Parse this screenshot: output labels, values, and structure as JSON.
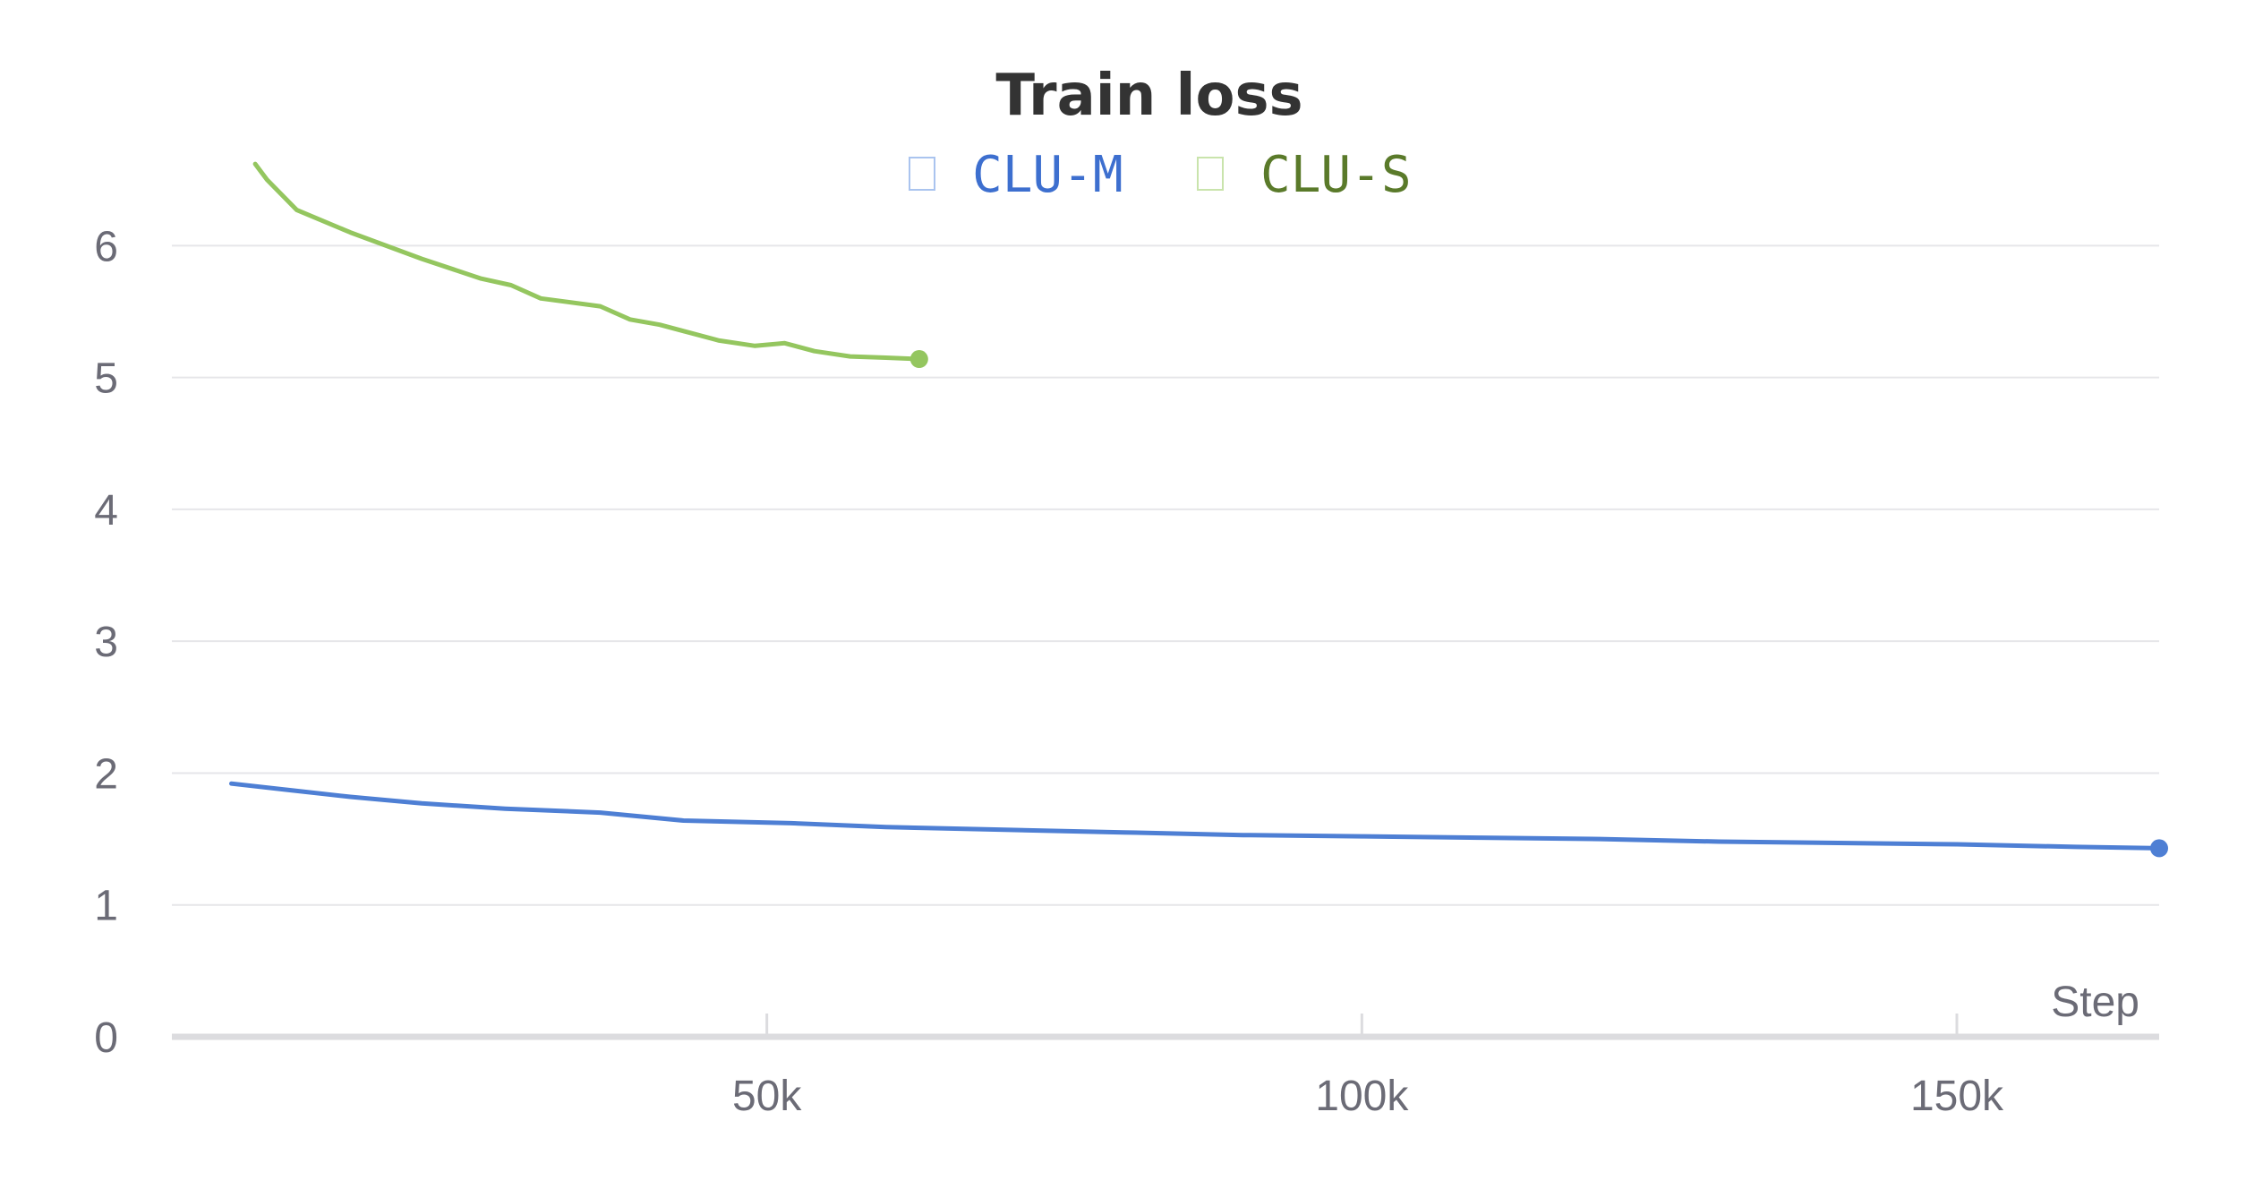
{
  "chart_data": {
    "type": "line",
    "title": "Train loss",
    "xlabel": "Step",
    "ylabel": "",
    "xlim": [
      0,
      167000
    ],
    "ylim": [
      0,
      6.6
    ],
    "x_ticks": [
      {
        "value": 50000,
        "label": "50k"
      },
      {
        "value": 100000,
        "label": "100k"
      },
      {
        "value": 150000,
        "label": "150k"
      }
    ],
    "y_ticks": [
      {
        "value": 0,
        "label": "0"
      },
      {
        "value": 1,
        "label": "1"
      },
      {
        "value": 2,
        "label": "2"
      },
      {
        "value": 3,
        "label": "3"
      },
      {
        "value": 4,
        "label": "4"
      },
      {
        "value": 5,
        "label": "5"
      },
      {
        "value": 6,
        "label": "6"
      }
    ],
    "grid": true,
    "legend_position": "top-center",
    "series": [
      {
        "name": "CLU-M",
        "color": "#4e7fd4",
        "legend_text_color": "#3d6fcf",
        "end_marker": true,
        "x": [
          5000,
          10000,
          15000,
          21000,
          28000,
          36000,
          43000,
          52000,
          60000,
          70000,
          80000,
          90000,
          100000,
          110000,
          120000,
          130000,
          140000,
          150000,
          160000,
          167000
        ],
        "y": [
          1.92,
          1.87,
          1.82,
          1.77,
          1.73,
          1.7,
          1.64,
          1.62,
          1.59,
          1.57,
          1.55,
          1.53,
          1.52,
          1.51,
          1.5,
          1.48,
          1.47,
          1.46,
          1.44,
          1.43
        ]
      },
      {
        "name": "CLU-S",
        "color": "#94c65f",
        "legend_text_color": "#5a7a2a",
        "end_marker": true,
        "x": [
          7000,
          8000,
          10500,
          15000,
          21000,
          26000,
          28500,
          31000,
          36000,
          38500,
          41000,
          43500,
          46000,
          49000,
          51500,
          54000,
          57000,
          60000,
          62800
        ],
        "y": [
          6.62,
          6.5,
          6.27,
          6.1,
          5.9,
          5.75,
          5.7,
          5.6,
          5.54,
          5.44,
          5.4,
          5.34,
          5.28,
          5.24,
          5.26,
          5.2,
          5.16,
          5.15,
          5.14
        ]
      }
    ]
  }
}
